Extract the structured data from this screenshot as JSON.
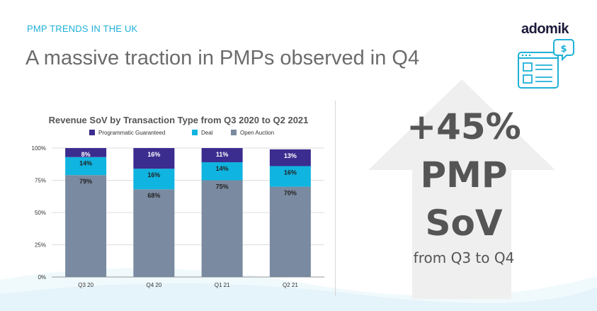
{
  "header": {
    "subtitle": "PMP TRENDS IN THE UK",
    "title": "A massive traction in PMPs observed in Q4",
    "logo_text": "adomik"
  },
  "kpi": {
    "line1": "+45%",
    "line2": "PMP",
    "line3": "SoV",
    "subline": "from Q3 to Q4"
  },
  "colors": {
    "accent": "#1fb0d8",
    "programmatic_guaranteed": "#3b2c8f",
    "deal": "#10b4e0",
    "open_auction": "#7a8aa0",
    "arrow": "#efefef"
  },
  "chart_data": {
    "type": "bar",
    "stacked": true,
    "title": "Revenue SoV by Transaction Type from Q3 2020 to Q2 2021",
    "categories": [
      "Q3 20",
      "Q4 20",
      "Q1 21",
      "Q2 21"
    ],
    "series": [
      {
        "name": "Open Auction",
        "values": [
          79,
          68,
          75,
          70
        ],
        "labels": [
          "79%",
          "68%",
          "75%",
          "70%"
        ],
        "color": "#7a8aa0"
      },
      {
        "name": "Deal",
        "values": [
          14,
          16,
          14,
          16
        ],
        "labels": [
          "14%",
          "16%",
          "14%",
          "16%"
        ],
        "color": "#10b4e0"
      },
      {
        "name": "Programmatic Guaranteed",
        "values": [
          8,
          16,
          11,
          13
        ],
        "labels": [
          "8%",
          "16%",
          "11%",
          "13%"
        ],
        "color": "#3b2c8f"
      }
    ],
    "legend_order": [
      "Programmatic Guaranteed",
      "Deal",
      "Open Auction"
    ],
    "legend_position": "top",
    "yticks": [
      "0%",
      "25%",
      "50%",
      "75%",
      "100%"
    ],
    "ylim": [
      0,
      100
    ],
    "grid": true
  }
}
